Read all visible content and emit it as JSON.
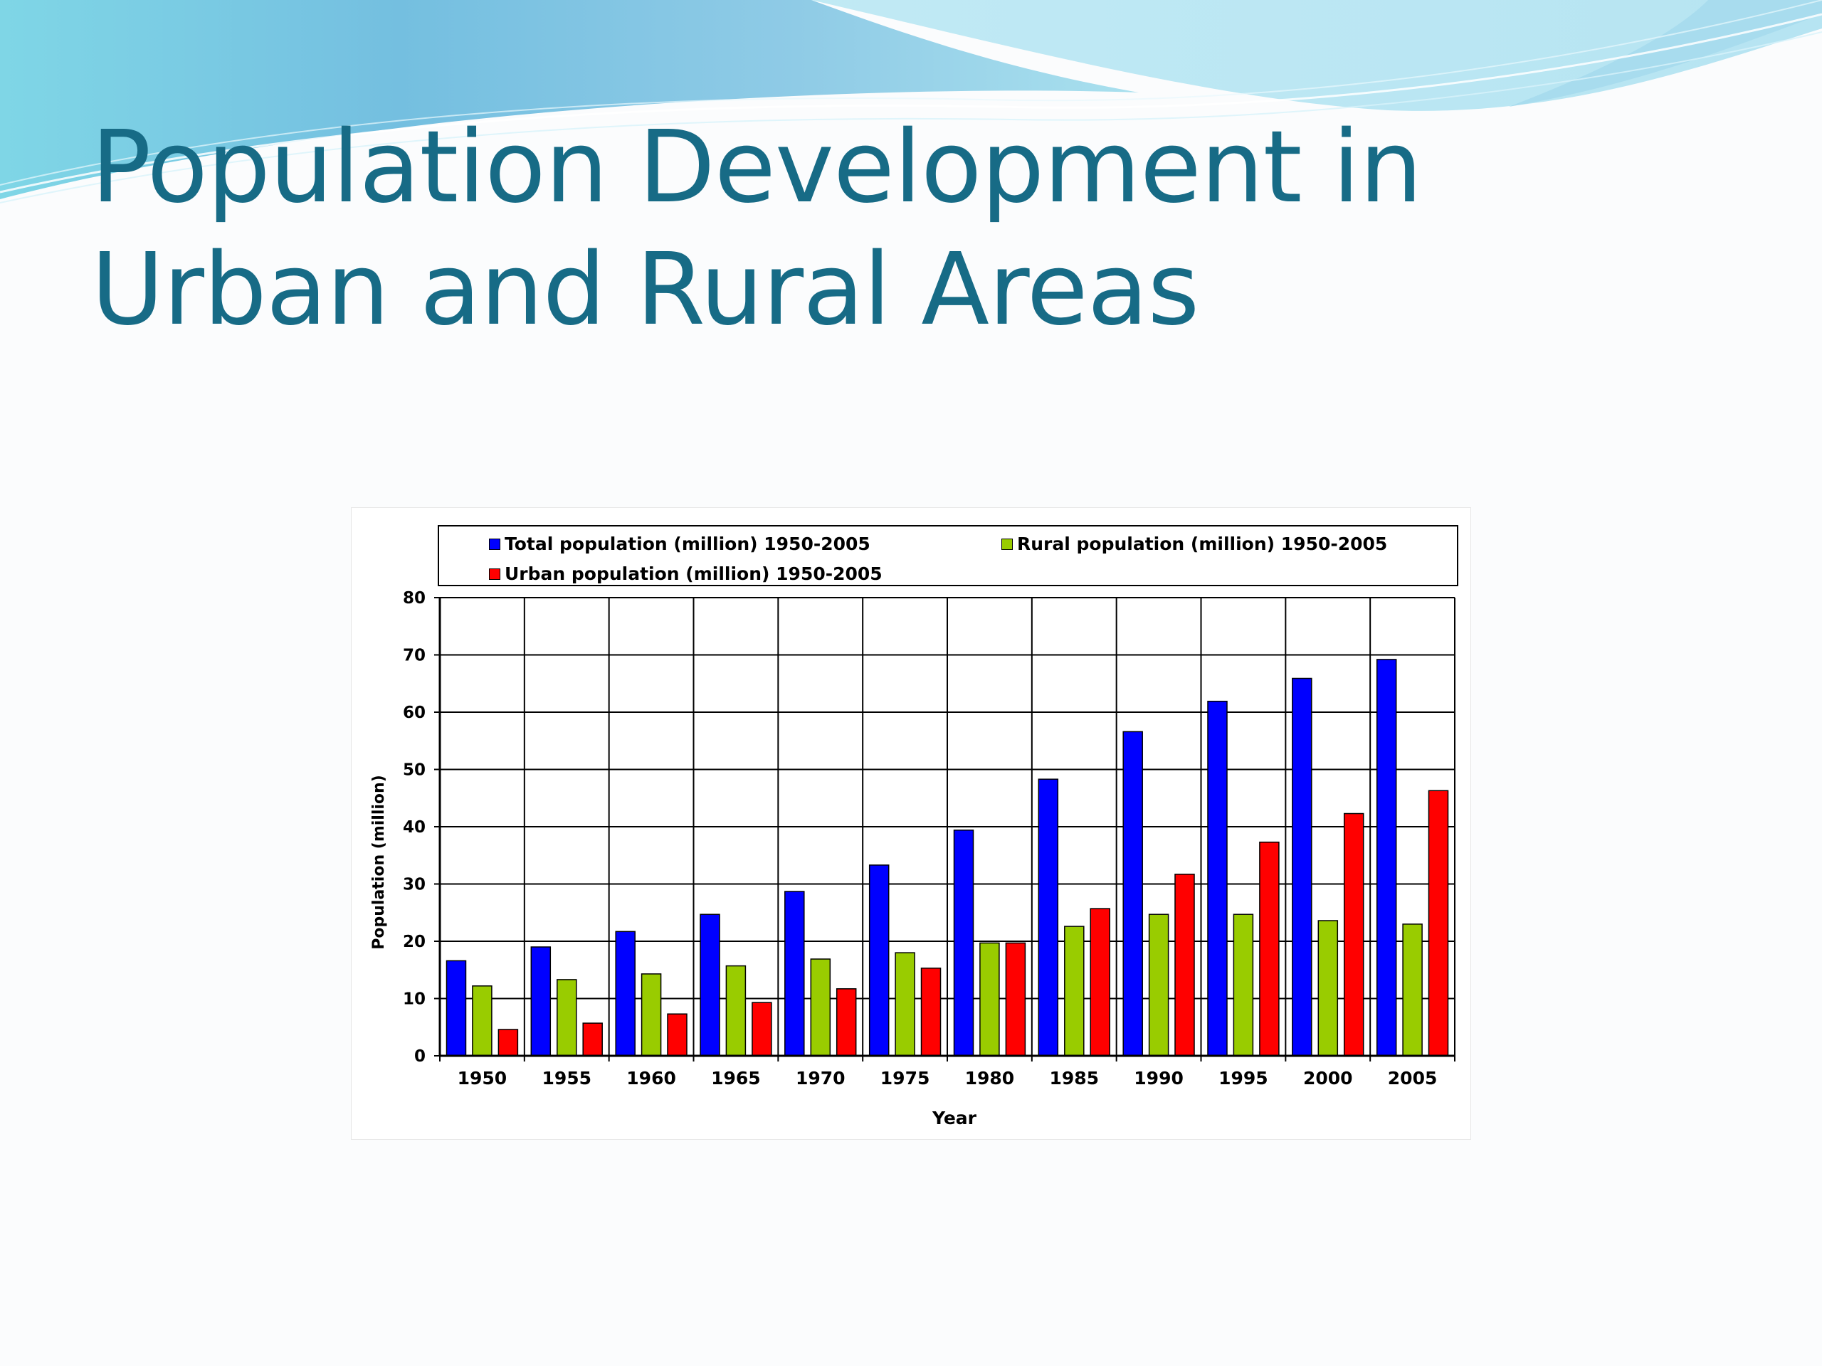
{
  "slide": {
    "title": "Population Development in Urban and Rural Areas",
    "colors": {
      "title": "#176b86",
      "wave_dark": "#6fb3d6",
      "wave_light": "#a9def0",
      "wave_teal": "#7fd6e6"
    }
  },
  "chart_data": {
    "type": "bar",
    "title": "",
    "xlabel": "Year",
    "ylabel": "Population (million)",
    "ylim": [
      0,
      80
    ],
    "yticks": [
      0,
      10,
      20,
      30,
      40,
      50,
      60,
      70,
      80
    ],
    "grid": true,
    "legend_position": "top",
    "categories": [
      "1950",
      "1955",
      "1960",
      "1965",
      "1970",
      "1975",
      "1980",
      "1985",
      "1990",
      "1995",
      "2000",
      "2005"
    ],
    "series": [
      {
        "name": "Total population (million) 1950-2005",
        "color": "#0000ff",
        "values": [
          16.6,
          19.0,
          21.7,
          24.7,
          28.7,
          33.3,
          39.4,
          48.3,
          56.6,
          61.9,
          65.9,
          69.2
        ]
      },
      {
        "name": "Rural population (million) 1950-2005",
        "color": "#99cc00",
        "values": [
          12.2,
          13.3,
          14.3,
          15.7,
          16.9,
          18.0,
          19.7,
          22.6,
          24.7,
          24.7,
          23.6,
          23.0
        ]
      },
      {
        "name": "Urban population (million) 1950-2005",
        "color": "#ff0000",
        "values": [
          4.6,
          5.7,
          7.3,
          9.3,
          11.7,
          15.3,
          19.7,
          25.7,
          31.7,
          37.3,
          42.3,
          46.3
        ]
      }
    ]
  }
}
